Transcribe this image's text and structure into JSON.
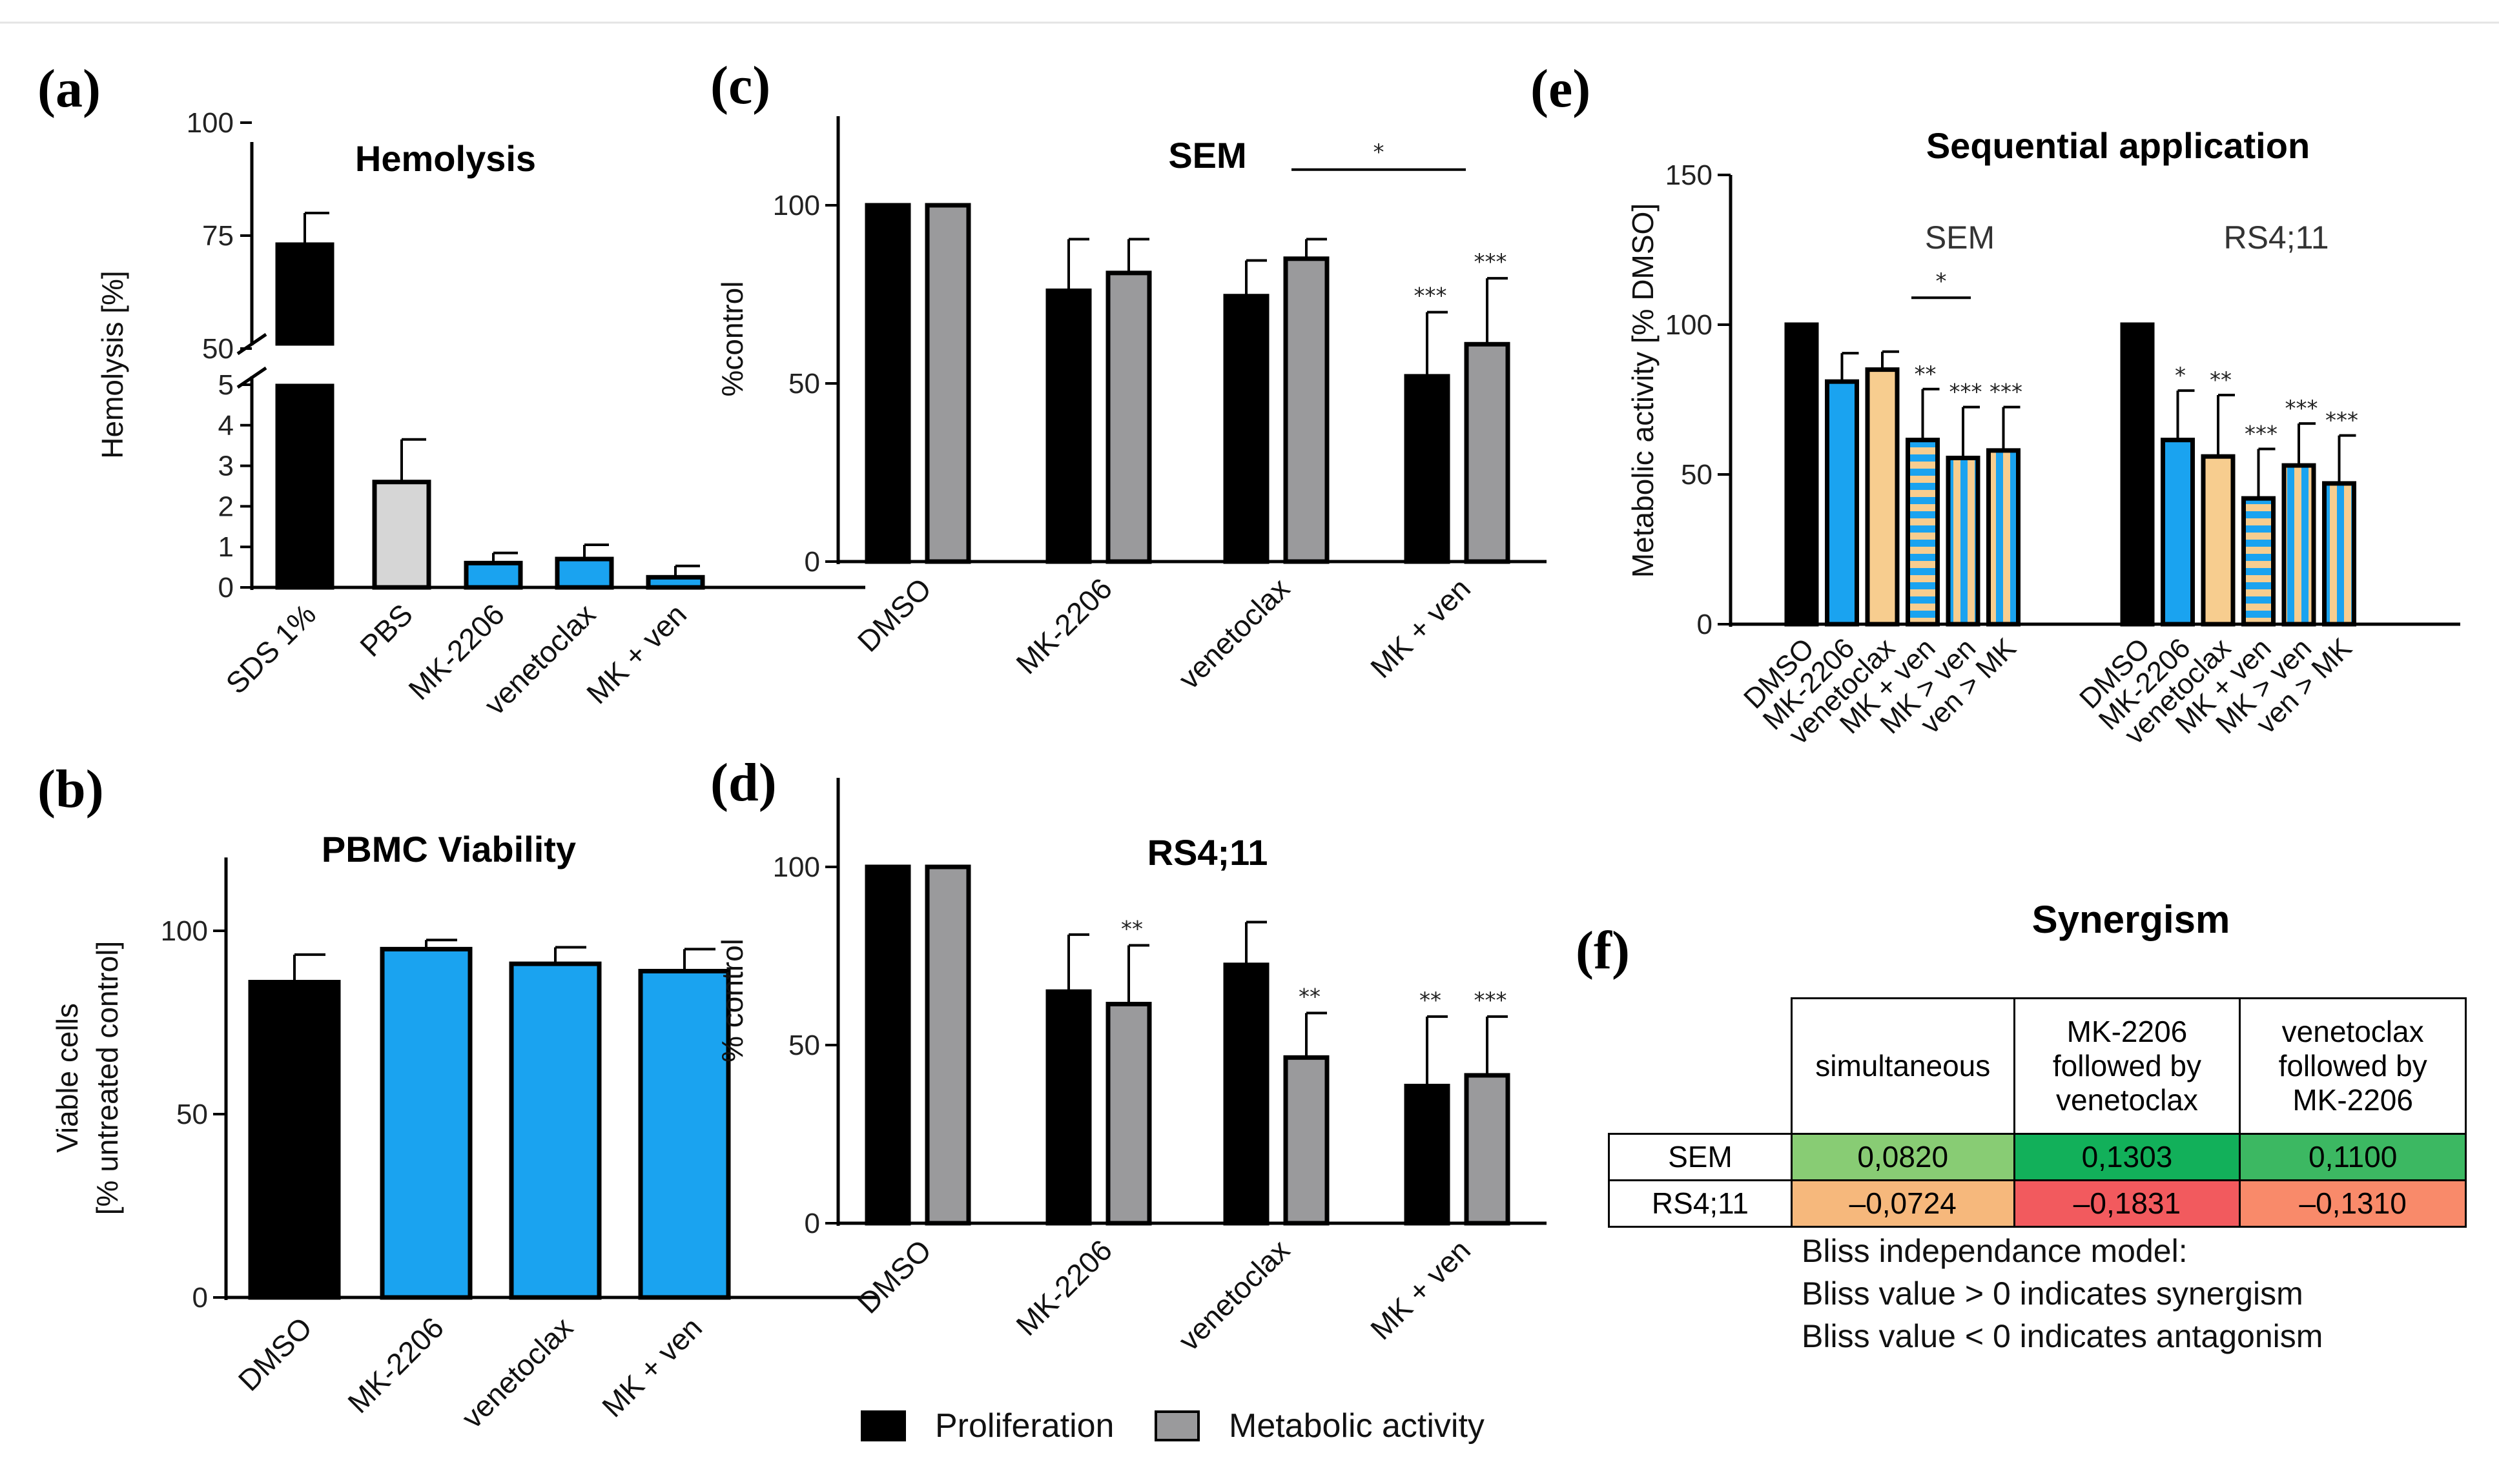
{
  "colors": {
    "black": "#000000",
    "grey": "#9a9a9c",
    "lightgrey": "#d6d6d6",
    "blue": "#1aa3f0",
    "orange": "#f7cd8f"
  },
  "panels": {
    "a": {
      "label": "(a)",
      "title": "Hemolysis",
      "ylabel": "Hemolysis [%]"
    },
    "b": {
      "label": "(b)",
      "title": "PBMC Viability",
      "ylabel1": "Viable cells",
      "ylabel2": "[% untreated control]"
    },
    "c": {
      "label": "(c)",
      "title": "SEM",
      "ylabel": "%control"
    },
    "d": {
      "label": "(d)",
      "title": "RS4;11",
      "ylabel": "% control"
    },
    "e": {
      "label": "(e)",
      "title": "Sequential application",
      "ylabel": "Metabolic activity [% DMSO]",
      "group1": "SEM",
      "group2": "RS4;11"
    },
    "f": {
      "label": "(f)",
      "title": "Synergism"
    }
  },
  "legend": {
    "proliferation": "Proliferation",
    "metabolic": "Metabolic activity"
  },
  "chart_data": [
    {
      "panel": "a",
      "type": "bar",
      "title": "Hemolysis",
      "ylabel": "Hemolysis [%]",
      "categories": [
        "SDS 1%",
        "PBS",
        "MK-2206",
        "venetoclax",
        "MK + ven"
      ],
      "values": [
        73,
        2.6,
        0.6,
        0.7,
        0.25
      ],
      "errors": [
        7,
        1.05,
        0.25,
        0.35,
        0.28
      ],
      "colors": [
        "black",
        "lightgrey",
        "blue",
        "blue",
        "blue"
      ],
      "broken_axis": true,
      "lower_ticks": [
        0,
        1,
        2,
        3,
        4,
        5
      ],
      "upper_ticks": [
        50,
        75,
        100
      ]
    },
    {
      "panel": "b",
      "type": "bar",
      "title": "PBMC Viability",
      "ylabel": "Viable cells [% untreated control]",
      "categories": [
        "DMSO",
        "MK-2206",
        "venetoclax",
        "MK + ven"
      ],
      "values": [
        86,
        95,
        91,
        89
      ],
      "errors": [
        7.5,
        2.5,
        4.5,
        6
      ],
      "colors": [
        "black",
        "blue",
        "blue",
        "blue"
      ],
      "yticks": [
        0,
        50,
        100
      ],
      "ylim": [
        0,
        120
      ]
    },
    {
      "panel": "c",
      "type": "bar",
      "title": "SEM",
      "ylabel": "%control",
      "categories": [
        "DMSO",
        "MK-2206",
        "venetoclax",
        "MK + ven"
      ],
      "series": [
        {
          "name": "Proliferation",
          "values": [
            100,
            76,
            74.5,
            52
          ],
          "errors": [
            0,
            14.5,
            10,
            18
          ],
          "stars": [
            "",
            "",
            "",
            "***"
          ]
        },
        {
          "name": "Metabolic activity",
          "values": [
            100,
            81,
            85,
            61
          ],
          "errors": [
            0,
            9.5,
            5.5,
            18.5
          ],
          "stars": [
            "",
            "",
            "",
            "***"
          ]
        }
      ],
      "bracket": {
        "from": "venetoclax-Metabolic activity",
        "to": "MK + ven-Metabolic activity",
        "label": "*"
      },
      "yticks": [
        0,
        50,
        100
      ],
      "ylim": [
        0,
        125
      ]
    },
    {
      "panel": "d",
      "type": "bar",
      "title": "RS4;11",
      "ylabel": "% control",
      "categories": [
        "DMSO",
        "MK-2206",
        "venetoclax",
        "MK + ven"
      ],
      "series": [
        {
          "name": "Proliferation",
          "values": [
            100,
            65,
            72.5,
            38.5
          ],
          "errors": [
            0,
            16,
            12,
            19.5
          ],
          "stars": [
            "",
            "",
            "",
            "**"
          ]
        },
        {
          "name": "Metabolic activity",
          "values": [
            100,
            61.5,
            46.5,
            41.5
          ],
          "errors": [
            0,
            16.5,
            12.5,
            16.5
          ],
          "stars": [
            "",
            "**",
            "**",
            "***"
          ]
        }
      ],
      "yticks": [
        0,
        50,
        100
      ],
      "ylim": [
        0,
        125
      ]
    },
    {
      "panel": "e",
      "type": "bar",
      "title": "Sequential application",
      "ylabel": "Metabolic activity [% DMSO]",
      "groups": [
        "SEM",
        "RS4;11"
      ],
      "categories": [
        "DMSO",
        "MK-2206",
        "venetoclax",
        "MK + ven",
        "MK > ven",
        "ven > MK"
      ],
      "series": [
        {
          "name": "SEM",
          "values": [
            100,
            81,
            85,
            61.5,
            55.5,
            58
          ],
          "errors": [
            0,
            9.5,
            6,
            17,
            17,
            14.5
          ],
          "stars": [
            "",
            "",
            "",
            "**",
            "***",
            "***"
          ]
        },
        {
          "name": "RS4;11",
          "values": [
            100,
            61.5,
            56,
            42,
            53,
            47
          ],
          "errors": [
            0,
            16.5,
            20.5,
            16.5,
            14,
            16
          ],
          "stars": [
            "",
            "*",
            "**",
            "***",
            "***",
            "***"
          ]
        }
      ],
      "bracket": {
        "from": "SEM-venetoclax",
        "to": "SEM-MK + ven",
        "label": "*"
      },
      "yticks": [
        0,
        50,
        100,
        150
      ],
      "ylim": [
        0,
        150
      ]
    },
    {
      "panel": "f",
      "type": "table",
      "title": "Synergism",
      "columns": [
        "simultaneous",
        "MK-2206 followed by venetoclax",
        "venetoclax followed by MK-2206"
      ],
      "rows": [
        {
          "label": "SEM",
          "values": [
            "0,0820",
            "0,1303",
            "0,1100"
          ]
        },
        {
          "label": "RS4;11",
          "values": [
            "–0,0724",
            "–0,1831",
            "–0,1310"
          ]
        }
      ]
    }
  ],
  "table": {
    "headers": [
      [
        "simultaneous"
      ],
      [
        "MK-2206",
        "followed by",
        "venetoclax"
      ],
      [
        "venetoclax",
        "followed by",
        "MK-2206"
      ]
    ],
    "rows": [
      {
        "label": "SEM",
        "cells": [
          "0,0820",
          "0,1303",
          "0,1100"
        ],
        "colors": [
          "#88cc74",
          "#12b05a",
          "#3cb862"
        ]
      },
      {
        "label": "RS4;11",
        "cells": [
          "–0,0724",
          "–0,1831",
          "–0,1310"
        ],
        "colors": [
          "#f6b87c",
          "#f25a5e",
          "#f98a6a"
        ]
      }
    ]
  },
  "notes": [
    "Bliss independance model:",
    "Bliss value > 0 indicates synergism",
    "Bliss value < 0 indicates antagonism"
  ]
}
